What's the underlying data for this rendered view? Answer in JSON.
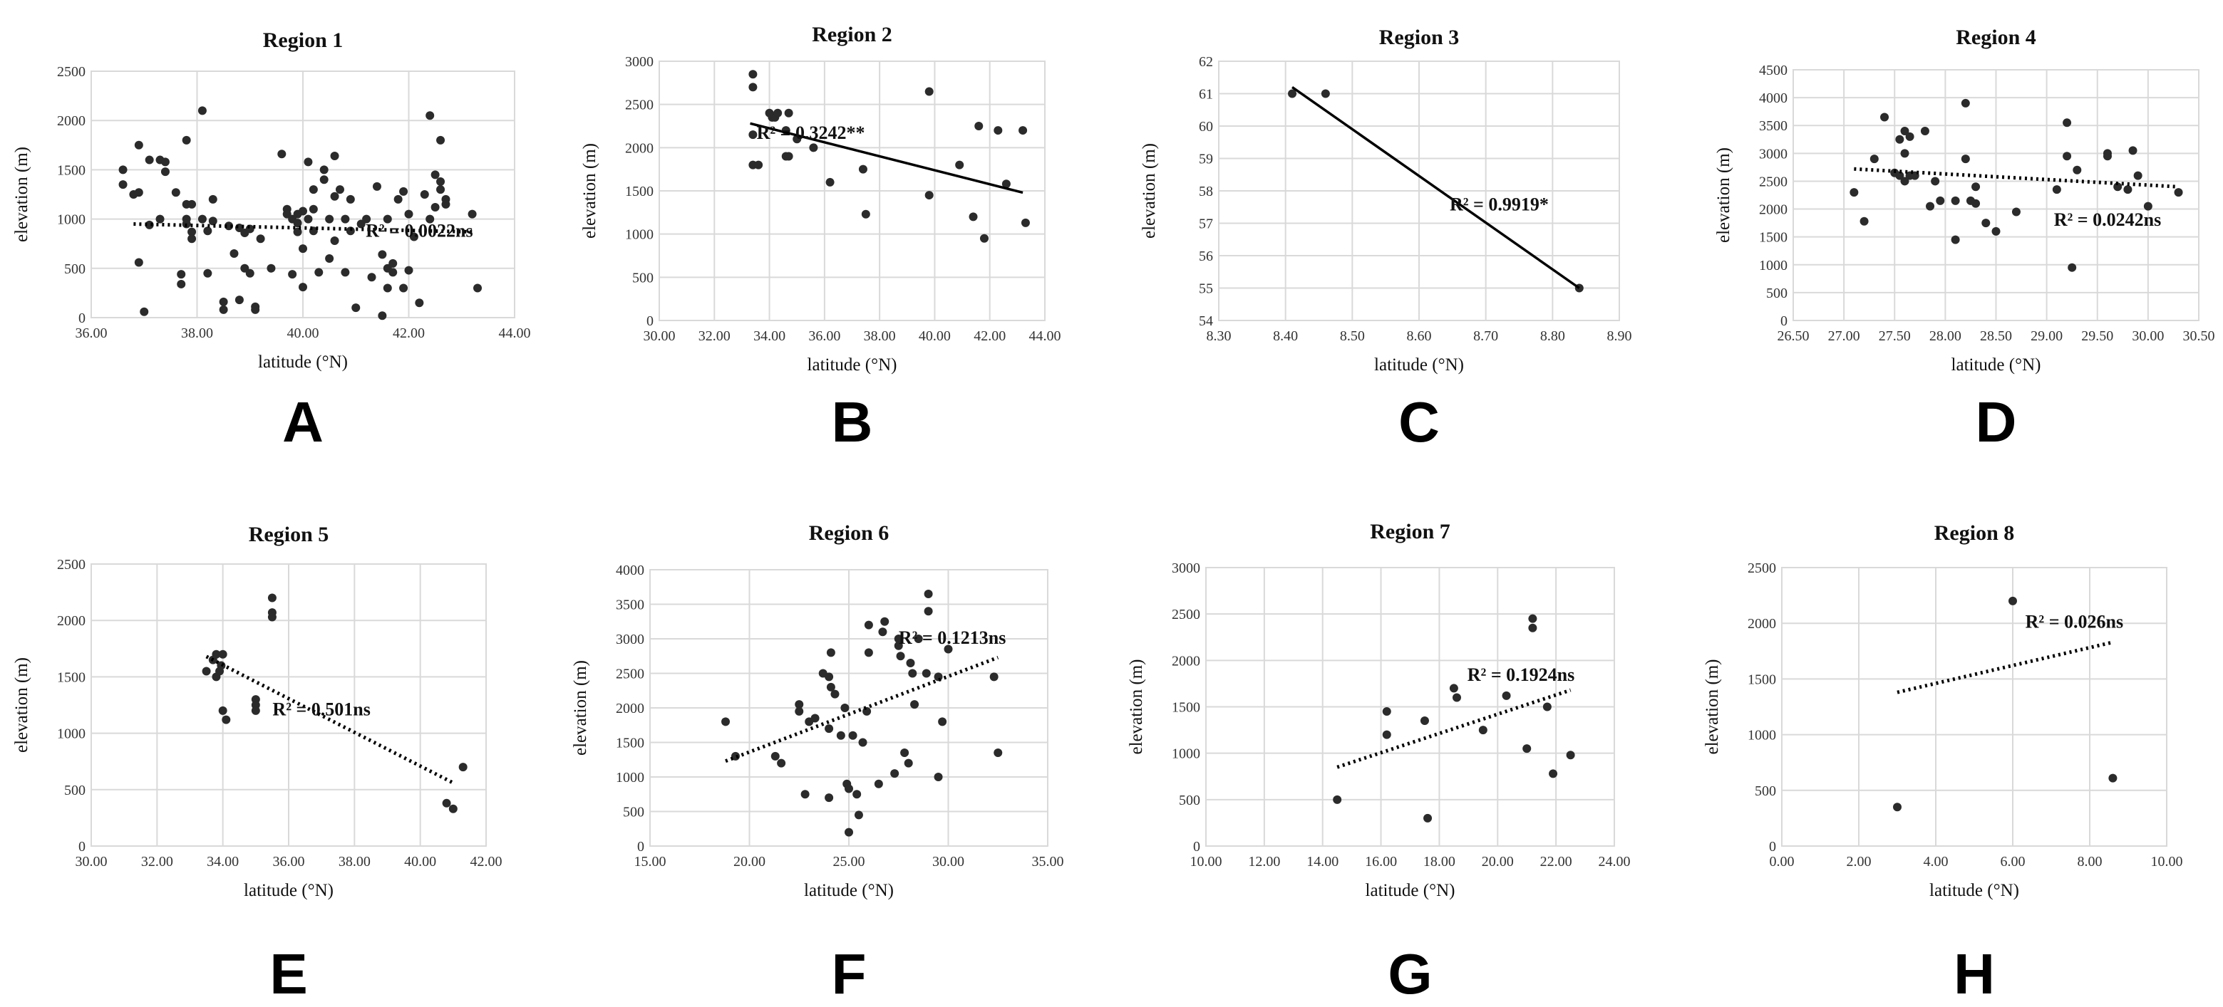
{
  "chart_data": [
    {
      "type": "scatter",
      "letter": "A",
      "title": "Region 1",
      "xlabel": "latitude (°N)",
      "ylabel": "elevation (m)",
      "xlim": [
        36,
        44
      ],
      "ylim": [
        0,
        2500
      ],
      "x_ticks": [
        36,
        38,
        40,
        42,
        44
      ],
      "y_ticks": [
        0,
        500,
        1000,
        1500,
        2000,
        2500
      ],
      "x_decimals": 2,
      "grid": true,
      "r2_label": "R² = 0.0022ns",
      "r2_anchor": [
        42.2,
        820
      ],
      "trendline": {
        "style": "dotted",
        "x1": 36.8,
        "y1": 950,
        "x2": 43.2,
        "y2": 870
      },
      "points": [
        [
          36.6,
          1500
        ],
        [
          36.6,
          1350
        ],
        [
          36.8,
          1250
        ],
        [
          36.9,
          1750
        ],
        [
          36.9,
          1270
        ],
        [
          36.9,
          560
        ],
        [
          37.0,
          60
        ],
        [
          37.1,
          940
        ],
        [
          37.1,
          1600
        ],
        [
          37.3,
          1000
        ],
        [
          37.3,
          1600
        ],
        [
          37.4,
          1580
        ],
        [
          37.4,
          1480
        ],
        [
          37.6,
          1270
        ],
        [
          37.7,
          340
        ],
        [
          37.7,
          440
        ],
        [
          37.8,
          1800
        ],
        [
          37.8,
          1150
        ],
        [
          37.8,
          1000
        ],
        [
          37.8,
          950
        ],
        [
          37.9,
          1150
        ],
        [
          37.9,
          870
        ],
        [
          37.9,
          800
        ],
        [
          38.1,
          2100
        ],
        [
          38.1,
          1000
        ],
        [
          38.2,
          880
        ],
        [
          38.2,
          450
        ],
        [
          38.3,
          1200
        ],
        [
          38.3,
          980
        ],
        [
          38.5,
          160
        ],
        [
          38.5,
          80
        ],
        [
          38.6,
          930
        ],
        [
          38.7,
          650
        ],
        [
          38.8,
          180
        ],
        [
          38.8,
          910
        ],
        [
          38.9,
          860
        ],
        [
          38.9,
          500
        ],
        [
          39.0,
          900
        ],
        [
          39.0,
          450
        ],
        [
          39.1,
          110
        ],
        [
          39.1,
          80
        ],
        [
          39.2,
          800
        ],
        [
          39.4,
          500
        ],
        [
          39.6,
          1660
        ],
        [
          39.7,
          1100
        ],
        [
          39.7,
          1050
        ],
        [
          39.8,
          440
        ],
        [
          39.8,
          1000
        ],
        [
          39.9,
          870
        ],
        [
          39.9,
          960
        ],
        [
          40.0,
          310
        ],
        [
          40.0,
          700
        ],
        [
          40.1,
          1000
        ],
        [
          40.1,
          1580
        ],
        [
          40.2,
          1300
        ],
        [
          40.2,
          1100
        ],
        [
          40.2,
          880
        ],
        [
          40.3,
          460
        ],
        [
          40.4,
          1500
        ],
        [
          40.4,
          1400
        ],
        [
          40.5,
          1000
        ],
        [
          40.5,
          600
        ],
        [
          40.6,
          1230
        ],
        [
          40.6,
          1640
        ],
        [
          40.6,
          780
        ],
        [
          40.7,
          1300
        ],
        [
          40.8,
          1000
        ],
        [
          40.8,
          460
        ],
        [
          40.9,
          1200
        ],
        [
          40.9,
          880
        ],
        [
          41.0,
          100
        ],
        [
          41.1,
          950
        ],
        [
          41.2,
          1000
        ],
        [
          41.3,
          410
        ],
        [
          41.4,
          1330
        ],
        [
          41.5,
          640
        ],
        [
          41.5,
          20
        ],
        [
          41.6,
          1000
        ],
        [
          41.6,
          500
        ],
        [
          41.6,
          300
        ],
        [
          41.7,
          550
        ],
        [
          41.7,
          460
        ],
        [
          41.8,
          1200
        ],
        [
          41.9,
          1280
        ],
        [
          41.9,
          300
        ],
        [
          42.0,
          1050
        ],
        [
          42.0,
          480
        ],
        [
          42.1,
          820
        ],
        [
          42.2,
          150
        ],
        [
          42.3,
          1250
        ],
        [
          42.4,
          2050
        ],
        [
          42.4,
          1000
        ],
        [
          42.5,
          1450
        ],
        [
          42.5,
          1120
        ],
        [
          42.6,
          1800
        ],
        [
          42.6,
          1380
        ],
        [
          42.6,
          1300
        ],
        [
          42.7,
          1200
        ],
        [
          42.7,
          1150
        ],
        [
          43.2,
          1050
        ],
        [
          43.3,
          300
        ],
        [
          40.0,
          1080
        ],
        [
          39.9,
          1050
        ]
      ]
    },
    {
      "type": "scatter",
      "letter": "B",
      "title": "Region 2",
      "xlabel": "latitude (°N)",
      "ylabel": "elevation (m)",
      "xlim": [
        30,
        44
      ],
      "ylim": [
        0,
        3000
      ],
      "x_ticks": [
        30,
        32,
        34,
        36,
        38,
        40,
        42,
        44
      ],
      "y_ticks": [
        0,
        500,
        1000,
        1500,
        2000,
        2500,
        3000
      ],
      "x_decimals": 2,
      "grid": true,
      "r2_label": "R² = 0.3242**",
      "r2_anchor": [
        35.5,
        2100
      ],
      "trendline": {
        "style": "solid",
        "x1": 33.3,
        "y1": 2280,
        "x2": 43.2,
        "y2": 1480
      },
      "points": [
        [
          33.4,
          2850
        ],
        [
          33.4,
          2700
        ],
        [
          33.4,
          2150
        ],
        [
          33.4,
          1800
        ],
        [
          33.6,
          1800
        ],
        [
          34.0,
          2400
        ],
        [
          34.1,
          2350
        ],
        [
          34.2,
          2350
        ],
        [
          34.3,
          2400
        ],
        [
          34.6,
          2200
        ],
        [
          34.6,
          1900
        ],
        [
          34.7,
          1900
        ],
        [
          34.7,
          2400
        ],
        [
          35.0,
          2100
        ],
        [
          35.6,
          2000
        ],
        [
          36.2,
          1600
        ],
        [
          37.4,
          1750
        ],
        [
          37.5,
          1230
        ],
        [
          39.8,
          2650
        ],
        [
          39.8,
          1450
        ],
        [
          40.9,
          1800
        ],
        [
          41.4,
          1200
        ],
        [
          41.6,
          2250
        ],
        [
          41.8,
          950
        ],
        [
          42.3,
          2200
        ],
        [
          42.6,
          1580
        ],
        [
          43.2,
          2200
        ],
        [
          43.3,
          1130
        ]
      ]
    },
    {
      "type": "scatter",
      "letter": "C",
      "title": "Region 3",
      "xlabel": "latitude (°N)",
      "ylabel": "elevation (m)",
      "xlim": [
        8.3,
        8.9
      ],
      "ylim": [
        54,
        62
      ],
      "x_ticks": [
        8.3,
        8.4,
        8.5,
        8.6,
        8.7,
        8.8,
        8.9
      ],
      "y_ticks": [
        54,
        55,
        56,
        57,
        58,
        59,
        60,
        61,
        62
      ],
      "x_decimals": 2,
      "grid": true,
      "r2_label": "R² = 0.9919*",
      "r2_anchor": [
        8.72,
        57.4
      ],
      "trendline": {
        "style": "solid",
        "x1": 8.41,
        "y1": 61.2,
        "x2": 8.84,
        "y2": 55.0
      },
      "points": [
        [
          8.41,
          61.0
        ],
        [
          8.46,
          61.0
        ],
        [
          8.84,
          55.0
        ]
      ]
    },
    {
      "type": "scatter",
      "letter": "D",
      "title": "Region 4",
      "xlabel": "latitude (°N)",
      "ylabel": "elevation  (m)",
      "xlim": [
        26.5,
        30.5
      ],
      "ylim": [
        0,
        4500
      ],
      "x_ticks": [
        26.5,
        27,
        27.5,
        28,
        28.5,
        29,
        29.5,
        30,
        30.5
      ],
      "y_ticks": [
        0,
        500,
        1000,
        1500,
        2000,
        2500,
        3000,
        3500,
        4000,
        4500
      ],
      "x_decimals": 2,
      "grid": true,
      "r2_label": "R² = 0.0242ns",
      "r2_anchor": [
        29.6,
        1700
      ],
      "trendline": {
        "style": "dotted",
        "x1": 27.1,
        "y1": 2720,
        "x2": 30.3,
        "y2": 2400
      },
      "points": [
        [
          27.1,
          2300
        ],
        [
          27.2,
          1780
        ],
        [
          27.3,
          2900
        ],
        [
          27.4,
          3650
        ],
        [
          27.5,
          2650
        ],
        [
          27.55,
          2600
        ],
        [
          27.55,
          3250
        ],
        [
          27.6,
          3400
        ],
        [
          27.6,
          3000
        ],
        [
          27.6,
          2500
        ],
        [
          27.65,
          3300
        ],
        [
          27.65,
          2600
        ],
        [
          27.7,
          2600
        ],
        [
          27.8,
          3400
        ],
        [
          27.85,
          2050
        ],
        [
          27.9,
          2500
        ],
        [
          27.95,
          2150
        ],
        [
          28.1,
          1450
        ],
        [
          28.1,
          2150
        ],
        [
          28.2,
          3900
        ],
        [
          28.2,
          2900
        ],
        [
          28.25,
          2150
        ],
        [
          28.3,
          2400
        ],
        [
          28.3,
          2100
        ],
        [
          28.4,
          1750
        ],
        [
          28.5,
          1600
        ],
        [
          28.7,
          1950
        ],
        [
          29.1,
          2350
        ],
        [
          29.2,
          2950
        ],
        [
          29.2,
          3550
        ],
        [
          29.25,
          950
        ],
        [
          29.3,
          2700
        ],
        [
          29.6,
          3000
        ],
        [
          29.6,
          2950
        ],
        [
          29.7,
          2400
        ],
        [
          29.8,
          2350
        ],
        [
          29.85,
          3050
        ],
        [
          29.9,
          2600
        ],
        [
          30.0,
          2050
        ],
        [
          30.3,
          2300
        ]
      ]
    },
    {
      "type": "scatter",
      "letter": "E",
      "title": "Region 5",
      "xlabel": "latitude (°N)",
      "ylabel": "elevation (m)",
      "xlim": [
        30,
        42
      ],
      "ylim": [
        0,
        2500
      ],
      "x_ticks": [
        30,
        32,
        34,
        36,
        38,
        40,
        42
      ],
      "y_ticks": [
        0,
        500,
        1000,
        1500,
        2000,
        2500
      ],
      "x_decimals": 2,
      "grid": true,
      "r2_label": "R² = 0.501ns",
      "r2_anchor": [
        37.0,
        1160
      ],
      "trendline": {
        "style": "dotted",
        "x1": 33.5,
        "y1": 1680,
        "x2": 41.0,
        "y2": 560
      },
      "points": [
        [
          33.5,
          1550
        ],
        [
          33.7,
          1650
        ],
        [
          33.8,
          1700
        ],
        [
          33.8,
          1500
        ],
        [
          33.9,
          1550
        ],
        [
          33.95,
          1600
        ],
        [
          34.0,
          1700
        ],
        [
          34.0,
          1200
        ],
        [
          34.1,
          1120
        ],
        [
          35.0,
          1300
        ],
        [
          35.0,
          1250
        ],
        [
          35.0,
          1200
        ],
        [
          35.5,
          2200
        ],
        [
          35.5,
          2070
        ],
        [
          35.5,
          2030
        ],
        [
          40.8,
          380
        ],
        [
          41.0,
          330
        ],
        [
          41.3,
          700
        ]
      ]
    },
    {
      "type": "scatter",
      "letter": "F",
      "title": "Region 6",
      "xlabel": "latitude (°N)",
      "ylabel": "elevation (m)",
      "xlim": [
        15,
        35
      ],
      "ylim": [
        0,
        4000
      ],
      "x_ticks": [
        15,
        20,
        25,
        30,
        35
      ],
      "y_ticks": [
        0,
        500,
        1000,
        1500,
        2000,
        2500,
        3000,
        3500,
        4000
      ],
      "x_decimals": 2,
      "grid": true,
      "r2_label": "R² = 0.1213ns",
      "r2_anchor": [
        30.2,
        2930
      ],
      "trendline": {
        "style": "dotted",
        "x1": 18.8,
        "y1": 1230,
        "x2": 32.5,
        "y2": 2730
      },
      "points": [
        [
          18.8,
          1800
        ],
        [
          19.3,
          1300
        ],
        [
          21.3,
          1300
        ],
        [
          21.6,
          1200
        ],
        [
          22.5,
          2050
        ],
        [
          22.5,
          1950
        ],
        [
          22.8,
          750
        ],
        [
          23.0,
          1800
        ],
        [
          23.3,
          1850
        ],
        [
          23.7,
          2500
        ],
        [
          24.0,
          2450
        ],
        [
          24.0,
          1700
        ],
        [
          24.1,
          2800
        ],
        [
          24.1,
          2300
        ],
        [
          24.0,
          700
        ],
        [
          24.3,
          2200
        ],
        [
          24.6,
          1600
        ],
        [
          24.8,
          2000
        ],
        [
          24.9,
          900
        ],
        [
          25.0,
          830
        ],
        [
          25.0,
          200
        ],
        [
          25.2,
          1600
        ],
        [
          25.4,
          750
        ],
        [
          25.5,
          450
        ],
        [
          25.7,
          1500
        ],
        [
          25.9,
          1950
        ],
        [
          26.0,
          3200
        ],
        [
          26.0,
          2800
        ],
        [
          26.5,
          900
        ],
        [
          26.7,
          3100
        ],
        [
          26.8,
          3250
        ],
        [
          27.3,
          1050
        ],
        [
          27.5,
          3000
        ],
        [
          27.5,
          2900
        ],
        [
          27.6,
          2750
        ],
        [
          27.8,
          1350
        ],
        [
          28.0,
          1200
        ],
        [
          28.1,
          2650
        ],
        [
          28.2,
          2500
        ],
        [
          28.3,
          2050
        ],
        [
          28.5,
          3000
        ],
        [
          28.9,
          2500
        ],
        [
          29.0,
          3400
        ],
        [
          29.0,
          3650
        ],
        [
          29.5,
          1000
        ],
        [
          29.5,
          2450
        ],
        [
          29.7,
          1800
        ],
        [
          30.0,
          2850
        ],
        [
          32.3,
          2450
        ],
        [
          32.5,
          1350
        ]
      ]
    },
    {
      "type": "scatter",
      "letter": "G",
      "title": "Region 7",
      "xlabel": "latitude (°N)",
      "ylabel": "elevation (m)",
      "xlim": [
        10,
        24
      ],
      "ylim": [
        0,
        3000
      ],
      "x_ticks": [
        10,
        12,
        14,
        16,
        18,
        20,
        22,
        24
      ],
      "y_ticks": [
        0,
        500,
        1000,
        1500,
        2000,
        2500,
        3000
      ],
      "x_decimals": 2,
      "grid": true,
      "r2_label": "R² = 0.1924ns",
      "r2_anchor": [
        20.8,
        1780
      ],
      "trendline": {
        "style": "dotted",
        "x1": 14.5,
        "y1": 850,
        "x2": 22.5,
        "y2": 1680
      },
      "points": [
        [
          14.5,
          500
        ],
        [
          16.2,
          1450
        ],
        [
          16.2,
          1200
        ],
        [
          17.5,
          1350
        ],
        [
          17.6,
          300
        ],
        [
          18.5,
          1700
        ],
        [
          18.6,
          1600
        ],
        [
          19.5,
          1250
        ],
        [
          20.3,
          1620
        ],
        [
          21.0,
          1050
        ],
        [
          21.2,
          2450
        ],
        [
          21.2,
          2350
        ],
        [
          21.7,
          1500
        ],
        [
          21.9,
          780
        ],
        [
          22.5,
          980
        ]
      ]
    },
    {
      "type": "scatter",
      "letter": "H",
      "title": "Region 8",
      "xlabel": "latitude (°N)",
      "ylabel": "elevation (m)",
      "xlim": [
        0,
        10
      ],
      "ylim": [
        0,
        2500
      ],
      "x_ticks": [
        0,
        2,
        4,
        6,
        8,
        10
      ],
      "y_ticks": [
        0,
        500,
        1000,
        1500,
        2000,
        2500
      ],
      "x_decimals": 2,
      "grid": true,
      "r2_label": "R² = 0.026ns",
      "r2_anchor": [
        7.6,
        1960
      ],
      "trendline": {
        "style": "dotted",
        "x1": 3.0,
        "y1": 1380,
        "x2": 8.6,
        "y2": 1830
      },
      "points": [
        [
          3.0,
          350
        ],
        [
          6.0,
          2200
        ],
        [
          8.6,
          610
        ]
      ]
    }
  ]
}
